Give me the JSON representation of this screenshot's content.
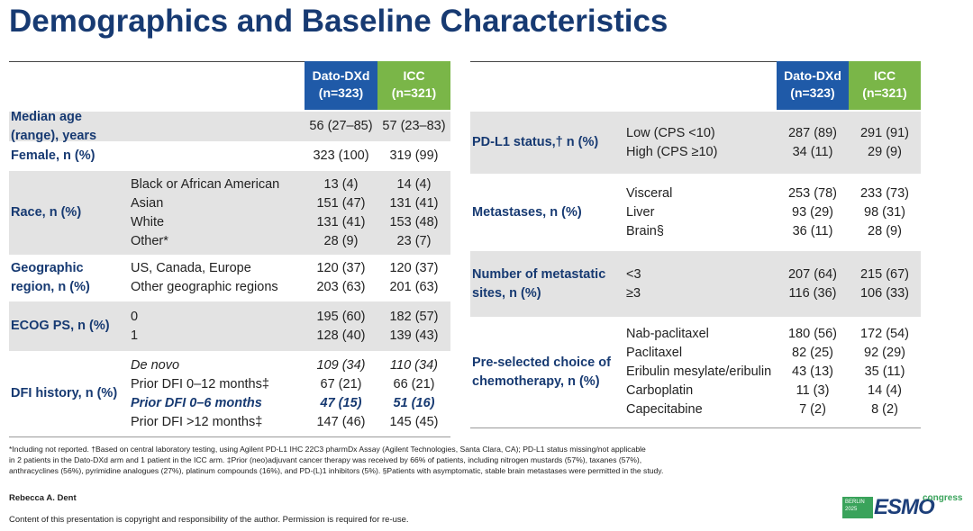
{
  "title": "Demographics and Baseline Characteristics",
  "left_table": {
    "headers": [
      {
        "name": "Dato-DXd",
        "n": "(n=323)"
      },
      {
        "name": "ICC",
        "n": "(n=321)"
      }
    ],
    "rows": [
      {
        "label": "Median age (range), years",
        "dato": [
          "56 (27–85)"
        ],
        "icc": [
          "57 (23–83)"
        ]
      },
      {
        "label": "Female, n (%)",
        "dato": [
          "323 (100)"
        ],
        "icc": [
          "319 (99)"
        ]
      },
      {
        "label": "Race, n (%)",
        "items": [
          "Black or African American",
          "Asian",
          "White",
          "Other*"
        ],
        "dato": [
          "13 (4)",
          "151 (47)",
          "131 (41)",
          "28 (9)"
        ],
        "icc": [
          "14 (4)",
          "131 (41)",
          "153 (48)",
          "23 (7)"
        ]
      },
      {
        "label": "Geographic region, n (%)",
        "items": [
          "US, Canada, Europe",
          "Other geographic regions"
        ],
        "dato": [
          "120 (37)",
          "203 (63)"
        ],
        "icc": [
          "120 (37)",
          "201 (63)"
        ]
      },
      {
        "label": "ECOG PS, n (%)",
        "items": [
          "0",
          "1"
        ],
        "dato": [
          "195 (60)",
          "128 (40)"
        ],
        "icc": [
          "182 (57)",
          "139 (43)"
        ]
      },
      {
        "label": "DFI history, n (%)",
        "items": [
          "De novo",
          "Prior DFI 0–12 months‡",
          "Prior DFI 0–6 months",
          "Prior DFI >12 months‡"
        ],
        "dato": [
          "109 (34)",
          "67 (21)",
          "47 (15)",
          "147 (46)"
        ],
        "icc": [
          "110 (34)",
          "66 (21)",
          "51 (16)",
          "145 (45)"
        ],
        "styles": [
          "italic",
          "normal",
          "bold-italic",
          "normal"
        ]
      }
    ]
  },
  "right_table": {
    "headers": [
      {
        "name": "Dato-DXd",
        "n": "(n=323)"
      },
      {
        "name": "ICC",
        "n": "(n=321)"
      }
    ],
    "rows": [
      {
        "label": "PD-L1 status,† n (%)",
        "items": [
          "Low (CPS <10)",
          "High (CPS ≥10)"
        ],
        "dato": [
          "287 (89)",
          "34 (11)"
        ],
        "icc": [
          "291 (91)",
          "29 (9)"
        ]
      },
      {
        "label": "Metastases, n (%)",
        "items": [
          "Visceral",
          "Liver",
          "Brain§"
        ],
        "dato": [
          "253 (78)",
          "93 (29)",
          "36 (11)"
        ],
        "icc": [
          "233 (73)",
          "98 (31)",
          "28 (9)"
        ]
      },
      {
        "label": "Number of metastatic sites, n (%)",
        "items": [
          "<3",
          "≥3"
        ],
        "dato": [
          "207 (64)",
          "116 (36)"
        ],
        "icc": [
          "215 (67)",
          "106 (33)"
        ]
      },
      {
        "label": "Pre-selected choice of chemotherapy, n (%)",
        "items": [
          "Nab-paclitaxel",
          "Paclitaxel",
          "Eribulin mesylate/eribulin",
          "Carboplatin",
          "Capecitabine"
        ],
        "dato": [
          "180 (56)",
          "82 (25)",
          "43 (13)",
          "11 (3)",
          "7 (2)"
        ],
        "icc": [
          "172 (54)",
          "92 (29)",
          "35 (11)",
          "14 (4)",
          "8 (2)"
        ]
      }
    ]
  },
  "footnotes": [
    "*Including not reported. †Based on central laboratory testing, using Agilent PD-L1 IHC 22C3 pharmDx Assay (Agilent Technologies, Santa Clara, CA); PD-L1 status missing/not applicable",
    "in 2 patients in the Dato-DXd arm and 1 patient in the ICC arm. ‡Prior (neo)adjuvant cancer therapy was received by 66% of patients, including nitrogen mustards (57%), taxanes (57%),",
    "anthracyclines (56%), pyrimidine analogues (27%), platinum compounds (16%), and PD-(L)1 inhibitors (5%). §Patients with asymptomatic, stable brain metastases were permitted in the study."
  ],
  "author": "Rebecca A. Dent",
  "copyright": "Content of this presentation is copyright and responsibility of the author. Permission is required for re-use.",
  "logo": {
    "city": "BERLIN",
    "year": "2025",
    "brand": "ESMO",
    "word": "congress"
  }
}
